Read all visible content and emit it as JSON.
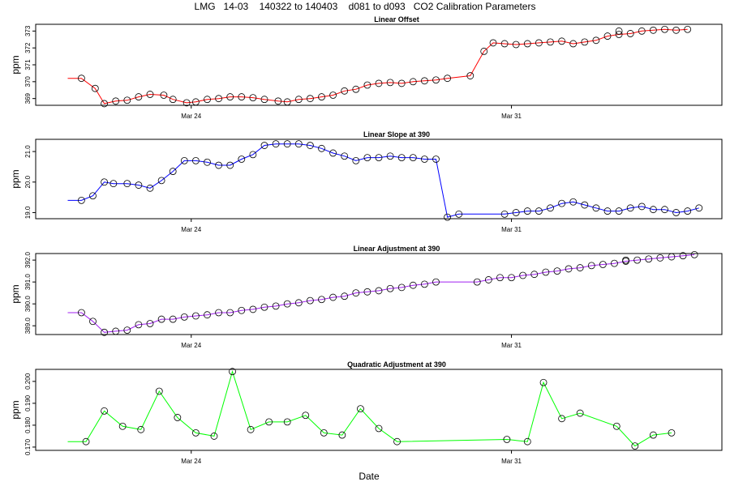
{
  "title": "LMG   14-03    140322 to 140403    d081 to d093   CO2 Calibration Parameters",
  "xlabel": "Date",
  "x_ticks": [
    {
      "label": "Mar 24",
      "day": 24
    },
    {
      "label": "Mar 31",
      "day": 31
    }
  ],
  "chart_data": [
    {
      "type": "line",
      "title": "Linear Offset",
      "ylabel": "ppm",
      "color": "#ff0000",
      "ylim": [
        368.6,
        373.4
      ],
      "yticks": [
        {
          "v": 369,
          "label": "369"
        },
        {
          "v": 370,
          "label": "370"
        },
        {
          "v": 371,
          "label": "371"
        },
        {
          "v": 372,
          "label": "372"
        },
        {
          "v": 373,
          "label": "373"
        }
      ],
      "x": [
        21.3,
        21.6,
        21.9,
        22.1,
        22.35,
        22.6,
        22.85,
        23.1,
        23.4,
        23.6,
        23.9,
        24.1,
        24.35,
        24.6,
        24.85,
        25.1,
        25.35,
        25.6,
        25.9,
        26.1,
        26.35,
        26.6,
        26.85,
        27.1,
        27.35,
        27.6,
        27.85,
        28.1,
        28.35,
        28.6,
        28.85,
        29.1,
        29.35,
        29.6,
        30.1,
        30.4,
        30.6,
        30.85,
        31.1,
        31.35,
        31.6,
        31.85,
        32.1,
        32.35,
        32.6,
        32.85,
        33.1,
        33.35,
        33.6,
        33.85,
        34.1,
        34.35,
        34.6,
        34.85
      ],
      "y": [
        370.2,
        370.2,
        369.6,
        368.7,
        368.85,
        368.9,
        369.1,
        369.25,
        369.2,
        368.95,
        368.75,
        368.8,
        368.95,
        369.0,
        369.1,
        369.1,
        369.05,
        368.95,
        368.85,
        368.8,
        368.95,
        369.0,
        369.1,
        369.2,
        369.45,
        369.55,
        369.8,
        369.9,
        369.95,
        369.9,
        370.0,
        370.05,
        370.1,
        370.2,
        370.35,
        371.8,
        372.3,
        372.25,
        372.2,
        372.25,
        372.3,
        372.35,
        372.4,
        372.25,
        372.35,
        372.45,
        372.7,
        372.8,
        372.85,
        373.0,
        373.05,
        373.1,
        373.05,
        373.1
      ],
      "markers_from": 1,
      "extra_points": [
        {
          "x": 33.35,
          "y": 373.0
        }
      ]
    },
    {
      "type": "line",
      "title": "Linear Slope at 390",
      "ylabel": "ppm",
      "color": "#0000ff",
      "ylim": [
        18.8,
        21.4
      ],
      "yticks": [
        {
          "v": 19,
          "label": "19.0"
        },
        {
          "v": 20,
          "label": "20.0"
        },
        {
          "v": 21,
          "label": "21.0"
        }
      ],
      "x": [
        21.3,
        21.6,
        21.85,
        22.1,
        22.3,
        22.6,
        22.85,
        23.1,
        23.35,
        23.6,
        23.85,
        24.1,
        24.35,
        24.6,
        24.85,
        25.1,
        25.35,
        25.6,
        25.85,
        26.1,
        26.35,
        26.6,
        26.85,
        27.1,
        27.35,
        27.6,
        27.85,
        28.1,
        28.35,
        28.6,
        28.85,
        29.1,
        29.35,
        29.6,
        29.85,
        30.85,
        31.1,
        31.35,
        31.6,
        31.85,
        32.1,
        32.35,
        32.6,
        32.85,
        33.1,
        33.35,
        33.6,
        33.85,
        34.1,
        34.35,
        34.6,
        34.85,
        35.1
      ],
      "y": [
        19.4,
        19.4,
        19.55,
        20.0,
        19.95,
        19.95,
        19.9,
        19.8,
        20.05,
        20.35,
        20.7,
        20.7,
        20.65,
        20.55,
        20.55,
        20.75,
        20.9,
        21.2,
        21.25,
        21.25,
        21.25,
        21.2,
        21.1,
        20.95,
        20.85,
        20.7,
        20.8,
        20.8,
        20.85,
        20.8,
        20.8,
        20.75,
        20.75,
        18.85,
        18.95,
        18.95,
        19.0,
        19.05,
        19.05,
        19.15,
        19.3,
        19.35,
        19.25,
        19.15,
        19.05,
        19.05,
        19.15,
        19.2,
        19.1,
        19.1,
        19.0,
        19.05,
        19.15
      ],
      "markers_from": 1,
      "extra_points": []
    },
    {
      "type": "line",
      "title": "Linear Adjustment at 390",
      "ylabel": "ppm",
      "color": "#a020f0",
      "ylim": [
        388.6,
        392.3
      ],
      "yticks": [
        {
          "v": 389,
          "label": "389.0"
        },
        {
          "v": 390,
          "label": "390.0"
        },
        {
          "v": 391,
          "label": "391.0"
        },
        {
          "v": 392,
          "label": "392.0"
        }
      ],
      "x": [
        21.3,
        21.6,
        21.85,
        22.1,
        22.35,
        22.6,
        22.85,
        23.1,
        23.35,
        23.6,
        23.85,
        24.1,
        24.35,
        24.6,
        24.85,
        25.1,
        25.35,
        25.6,
        25.85,
        26.1,
        26.35,
        26.6,
        26.85,
        27.1,
        27.35,
        27.6,
        27.85,
        28.1,
        28.35,
        28.6,
        28.85,
        29.1,
        29.35,
        30.25,
        30.5,
        30.75,
        31.0,
        31.25,
        31.5,
        31.75,
        32.0,
        32.25,
        32.5,
        32.75,
        33.0,
        33.25,
        33.5,
        33.75,
        34.0,
        34.25,
        34.5,
        34.75,
        35.0
      ],
      "y": [
        389.6,
        389.6,
        389.2,
        388.7,
        388.75,
        388.8,
        389.05,
        389.1,
        389.3,
        389.3,
        389.4,
        389.45,
        389.5,
        389.6,
        389.6,
        389.7,
        389.75,
        389.85,
        389.9,
        390.0,
        390.05,
        390.15,
        390.2,
        390.3,
        390.35,
        390.5,
        390.55,
        390.6,
        390.7,
        390.75,
        390.85,
        390.9,
        391.0,
        391.0,
        391.1,
        391.2,
        391.2,
        391.3,
        391.35,
        391.45,
        391.5,
        391.6,
        391.65,
        391.75,
        391.8,
        391.85,
        391.95,
        392.0,
        392.05,
        392.1,
        392.15,
        392.2,
        392.25
      ],
      "markers_from": 1,
      "extra_points": [
        {
          "x": 33.5,
          "y": 392.0
        }
      ]
    },
    {
      "type": "line",
      "title": "Quadratic Adjustment at 390",
      "ylabel": "ppm",
      "color": "#00ff00",
      "ylim": [
        0.1685,
        0.2055
      ],
      "yticks": [
        {
          "v": 0.17,
          "label": "0.170"
        },
        {
          "v": 0.18,
          "label": "0.180"
        },
        {
          "v": 0.19,
          "label": "0.190"
        },
        {
          "v": 0.2,
          "label": "0.200"
        }
      ],
      "x": [
        21.3,
        21.7,
        22.1,
        22.5,
        22.9,
        23.3,
        23.7,
        24.1,
        24.5,
        24.9,
        25.3,
        25.7,
        26.1,
        26.5,
        26.9,
        27.3,
        27.7,
        28.1,
        28.5,
        30.9,
        31.35,
        31.7,
        32.1,
        32.5,
        33.3,
        33.7,
        34.1,
        34.5
      ],
      "y": [
        0.1725,
        0.1725,
        0.1865,
        0.1795,
        0.178,
        0.1955,
        0.1835,
        0.1765,
        0.175,
        0.2045,
        0.178,
        0.1815,
        0.1815,
        0.1845,
        0.1765,
        0.1755,
        0.1875,
        0.1785,
        0.1725,
        0.1735,
        0.1725,
        0.1995,
        0.183,
        0.1855,
        0.1795,
        0.1705,
        0.1755,
        0.1765
      ],
      "markers_from": 1,
      "extra_points": []
    }
  ]
}
